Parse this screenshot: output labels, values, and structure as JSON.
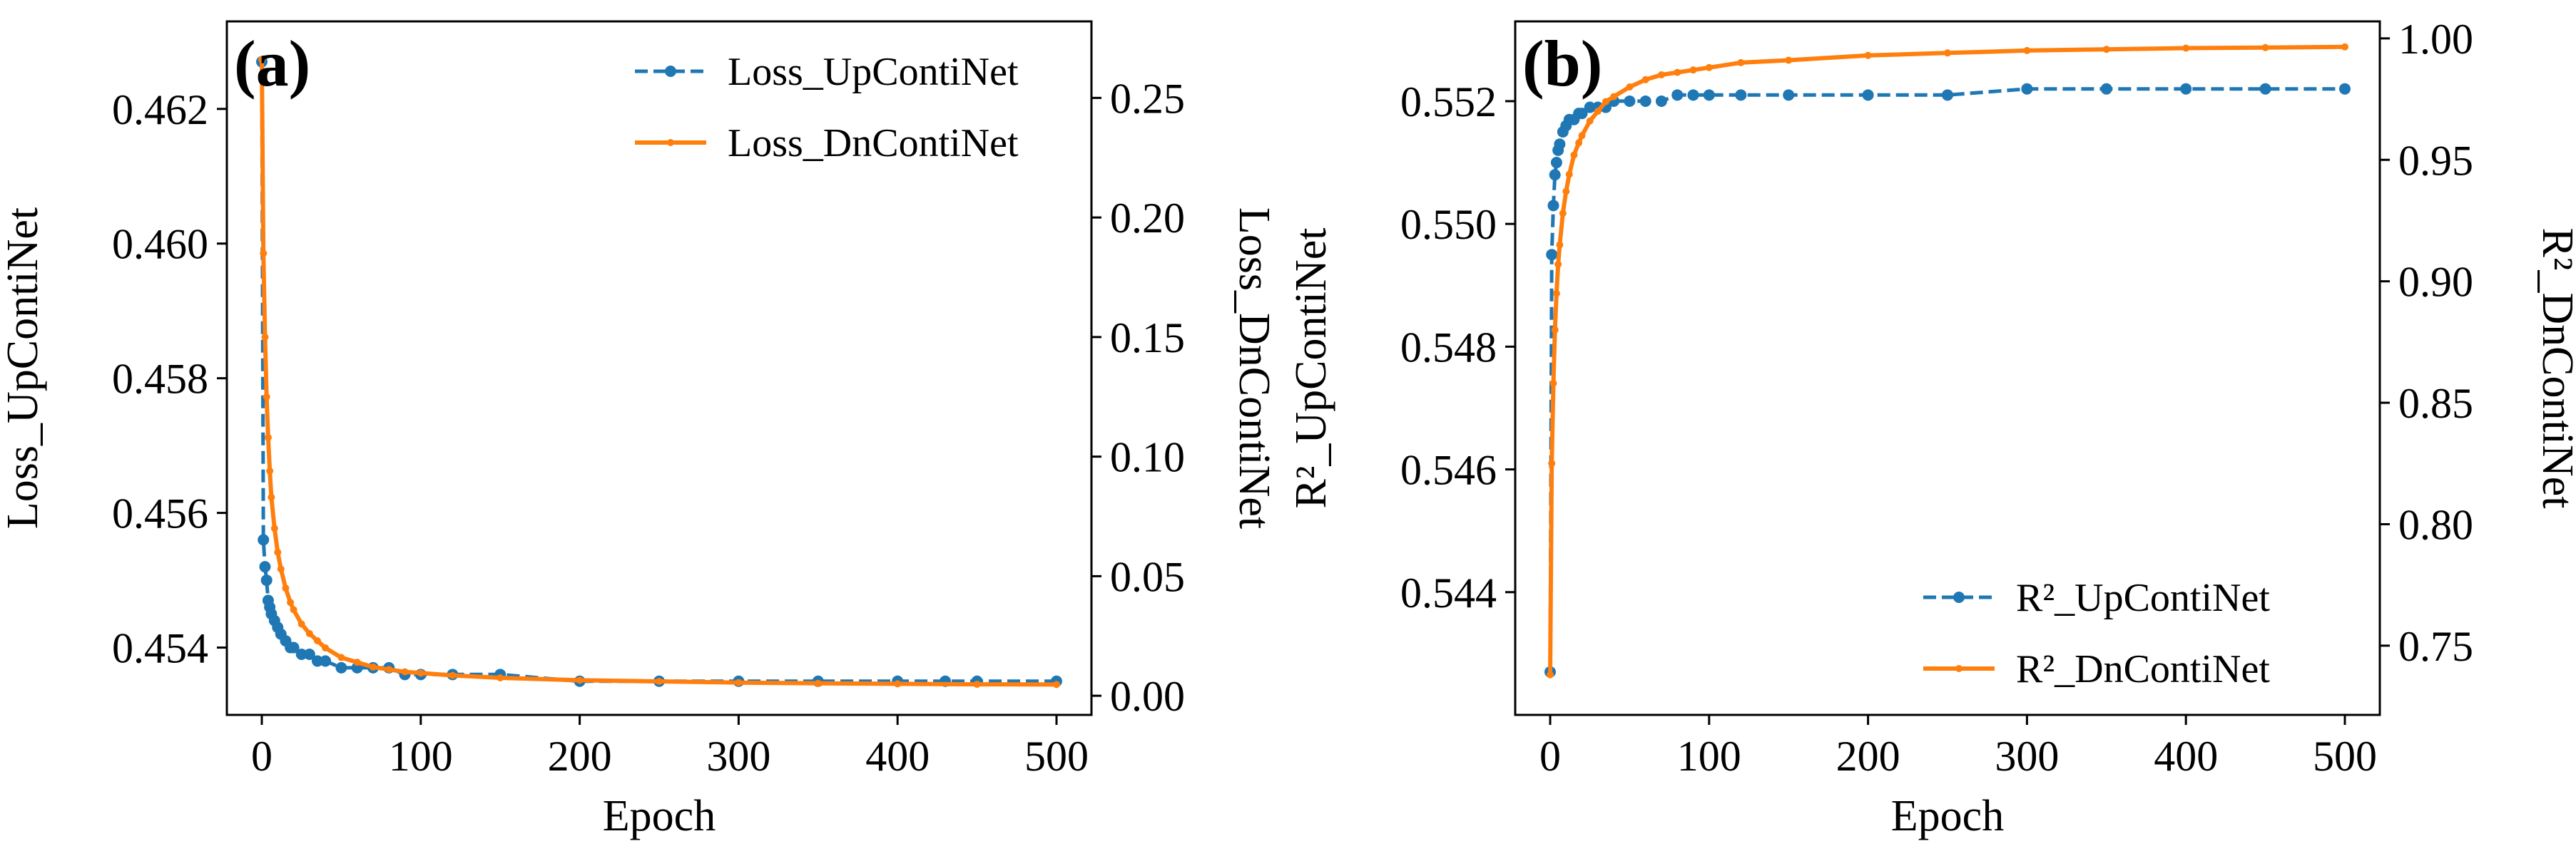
{
  "chart_data": [
    {
      "type": "line",
      "panel_label": "(a)",
      "xlabel": "Epoch",
      "ylabel_left": "Loss_UpContiNet",
      "ylabel_right": "Loss_DnContiNet",
      "xlim": [
        -22,
        522
      ],
      "ylim_left": [
        0.453,
        0.4633
      ],
      "ylim_right": [
        -0.008,
        0.282
      ],
      "x_ticks": [
        0,
        100,
        200,
        300,
        400,
        500
      ],
      "y_ticks_left": [
        0.454,
        0.456,
        0.458,
        0.46,
        0.462
      ],
      "y_ticks_right": [
        0.0,
        0.05,
        0.1,
        0.15,
        0.2,
        0.25
      ],
      "legend_position": "top-right",
      "grid": false,
      "series": [
        {
          "name": "Loss_UpContiNet",
          "axis": "left",
          "color": "#1f77b4",
          "linestyle": "dashed",
          "marker": "circle",
          "x": [
            0,
            1,
            2,
            3,
            4,
            5,
            6,
            8,
            10,
            12,
            15,
            18,
            20,
            25,
            30,
            35,
            40,
            50,
            60,
            70,
            80,
            90,
            100,
            120,
            150,
            200,
            250,
            300,
            350,
            400,
            430,
            450,
            500
          ],
          "y": [
            0.4627,
            0.4556,
            0.4552,
            0.455,
            0.4547,
            0.4546,
            0.4545,
            0.4544,
            0.4543,
            0.4542,
            0.4541,
            0.454,
            0.454,
            0.4539,
            0.4539,
            0.4538,
            0.4538,
            0.4537,
            0.4537,
            0.4537,
            0.4537,
            0.4536,
            0.4536,
            0.4536,
            0.4536,
            0.4535,
            0.4535,
            0.4535,
            0.4535,
            0.4535,
            0.4535,
            0.4535,
            0.4535
          ]
        },
        {
          "name": "Loss_DnContiNet",
          "axis": "right",
          "color": "#ff7f0e",
          "linestyle": "solid",
          "marker": "dot",
          "x": [
            0,
            1,
            2,
            3,
            4,
            5,
            6,
            8,
            10,
            12,
            15,
            18,
            20,
            25,
            30,
            35,
            40,
            50,
            60,
            70,
            80,
            90,
            100,
            120,
            150,
            200,
            250,
            300,
            350,
            400,
            450,
            500
          ],
          "y": [
            0.266,
            0.185,
            0.15,
            0.125,
            0.108,
            0.094,
            0.083,
            0.07,
            0.06,
            0.053,
            0.045,
            0.039,
            0.036,
            0.03,
            0.026,
            0.023,
            0.02,
            0.016,
            0.014,
            0.012,
            0.011,
            0.01,
            0.0095,
            0.0085,
            0.0075,
            0.0065,
            0.006,
            0.0055,
            0.0052,
            0.005,
            0.0048,
            0.0047
          ]
        }
      ]
    },
    {
      "type": "line",
      "panel_label": "(b)",
      "xlabel": "Epoch",
      "ylabel_left": "R²_UpContiNet",
      "ylabel_right": "R²_DnContiNet",
      "xlim": [
        -22,
        522
      ],
      "ylim_left": [
        0.542,
        0.5533
      ],
      "ylim_right": [
        0.7215,
        1.007
      ],
      "x_ticks": [
        0,
        100,
        200,
        300,
        400,
        500
      ],
      "y_ticks_left": [
        0.544,
        0.546,
        0.548,
        0.55,
        0.552
      ],
      "y_ticks_right": [
        0.75,
        0.8,
        0.85,
        0.9,
        0.95,
        1.0
      ],
      "legend_position": "bottom-right",
      "grid": false,
      "series": [
        {
          "name": "R²_UpContiNet",
          "axis": "left",
          "color": "#1f77b4",
          "linestyle": "dashed",
          "marker": "circle",
          "x": [
            0,
            1,
            2,
            3,
            4,
            5,
            6,
            8,
            10,
            12,
            15,
            18,
            20,
            25,
            30,
            35,
            40,
            50,
            60,
            70,
            80,
            90,
            100,
            120,
            150,
            200,
            250,
            300,
            350,
            400,
            450,
            500
          ],
          "y": [
            0.5427,
            0.5495,
            0.5503,
            0.5508,
            0.551,
            0.5512,
            0.5513,
            0.5515,
            0.5516,
            0.5517,
            0.5517,
            0.5518,
            0.5518,
            0.5519,
            0.5519,
            0.5519,
            0.552,
            0.552,
            0.552,
            0.552,
            0.5521,
            0.5521,
            0.5521,
            0.5521,
            0.5521,
            0.5521,
            0.5521,
            0.5522,
            0.5522,
            0.5522,
            0.5522,
            0.5522
          ]
        },
        {
          "name": "R²_DnContiNet",
          "axis": "right",
          "color": "#ff7f0e",
          "linestyle": "solid",
          "marker": "dot",
          "x": [
            0,
            1,
            2,
            3,
            4,
            5,
            6,
            8,
            10,
            12,
            15,
            18,
            20,
            25,
            30,
            35,
            40,
            50,
            60,
            70,
            80,
            90,
            100,
            120,
            150,
            200,
            250,
            300,
            350,
            400,
            450,
            500
          ],
          "y": [
            0.738,
            0.825,
            0.858,
            0.88,
            0.895,
            0.907,
            0.915,
            0.928,
            0.937,
            0.944,
            0.952,
            0.957,
            0.96,
            0.966,
            0.97,
            0.974,
            0.976,
            0.98,
            0.983,
            0.985,
            0.986,
            0.987,
            0.988,
            0.99,
            0.991,
            0.993,
            0.994,
            0.995,
            0.9955,
            0.996,
            0.9962,
            0.9965
          ]
        }
      ]
    }
  ]
}
